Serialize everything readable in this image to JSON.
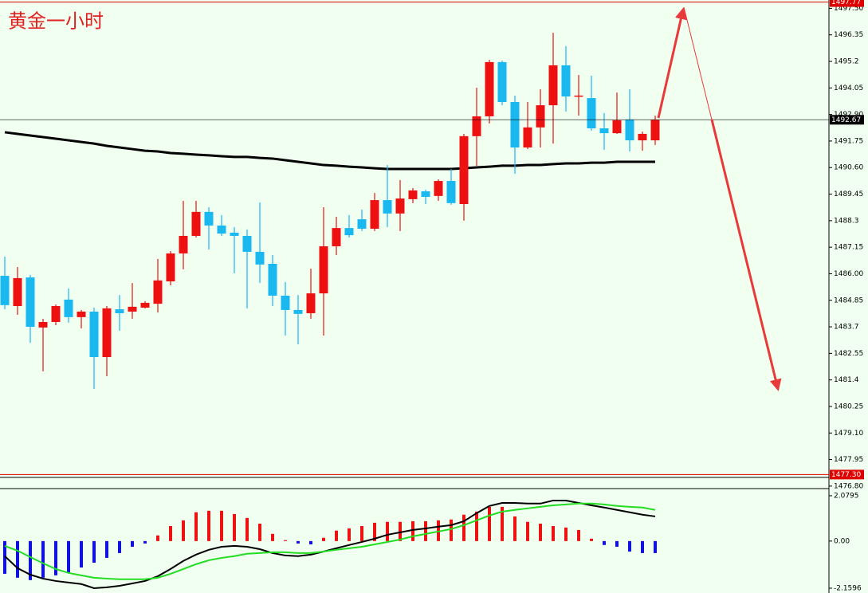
{
  "chart_data": [
    {
      "type": "candlestick",
      "title": "黄金一小时",
      "categories": [
        null,
        null,
        null,
        null,
        null,
        null,
        null,
        null,
        null,
        null,
        null,
        null,
        null,
        null,
        null,
        null,
        null,
        null,
        null,
        null,
        null,
        null,
        null,
        null,
        null,
        null,
        null,
        null,
        null,
        null,
        null,
        null,
        null,
        null,
        null,
        null,
        null,
        null,
        null,
        null,
        null,
        null,
        null,
        null,
        null,
        null,
        null,
        null,
        null,
        null,
        null,
        null
      ],
      "open": [
        1485.91,
        1484.6,
        1485.84,
        1483.67,
        1483.91,
        1484.88,
        1484.12,
        1484.36,
        1482.39,
        1484.46,
        1484.36,
        1484.53,
        1484.7,
        1485.67,
        1486.88,
        1487.64,
        1488.68,
        1488.09,
        1487.78,
        1487.64,
        1486.95,
        1486.43,
        1485.05,
        1484.43,
        1484.29,
        1485.15,
        1487.19,
        1487.98,
        1488.36,
        1487.95,
        1489.19,
        1488.61,
        1489.23,
        1489.57,
        1489.37,
        1490.02,
        1489.02,
        1491.96,
        1492.82,
        1495.17,
        1493.44,
        1491.47,
        1492.34,
        1493.3,
        1495.03,
        1493.68,
        1493.61,
        1492.3,
        1492.09,
        1492.68,
        1491.78,
        1491.78
      ],
      "high": [
        1486.74,
        1486.29,
        1485.95,
        1484.05,
        1484.67,
        1485.36,
        1484.43,
        1484.53,
        1484.6,
        1485.08,
        1485.6,
        1484.81,
        1486.64,
        1486.98,
        1489.16,
        1489.16,
        1488.88,
        1488.54,
        1488.02,
        1487.92,
        1489.09,
        1486.81,
        1485.64,
        1485.08,
        1486.22,
        1488.88,
        1488.47,
        1488.54,
        1488.78,
        1489.5,
        1490.71,
        1490.06,
        1489.71,
        1489.64,
        1490.09,
        1490.54,
        1492.06,
        1494.06,
        1495.27,
        1495.24,
        1493.72,
        1493.44,
        1493.99,
        1496.44,
        1495.86,
        1494.61,
        1494.58,
        1492.96,
        1493.85,
        1493.99,
        1492.16,
        1492.85
      ],
      "low": [
        1484.46,
        1484.22,
        1483.01,
        1481.77,
        1483.77,
        1483.88,
        1483.63,
        1481.01,
        1481.56,
        1483.53,
        1484.05,
        1484.5,
        1484.32,
        1485.5,
        1486.19,
        1487.57,
        1487.05,
        1487.64,
        1486.02,
        1484.5,
        1485.6,
        1484.6,
        1483.32,
        1482.94,
        1484.05,
        1483.32,
        1486.81,
        1487.57,
        1487.85,
        1487.85,
        1488.02,
        1487.85,
        1489.06,
        1489.02,
        1489.16,
        1488.99,
        1488.3,
        1490.68,
        1492.51,
        1493.3,
        1490.33,
        1491.4,
        1491.47,
        1491.64,
        1493.03,
        1492.85,
        1492.2,
        1491.37,
        1492.06,
        1491.3,
        1491.33,
        1491.58
      ],
      "close": [
        1484.64,
        1485.81,
        1483.7,
        1483.91,
        1484.6,
        1484.12,
        1484.36,
        1482.39,
        1484.5,
        1484.29,
        1484.57,
        1484.74,
        1485.71,
        1486.88,
        1487.64,
        1488.68,
        1488.09,
        1487.74,
        1487.64,
        1486.95,
        1486.4,
        1485.05,
        1484.43,
        1484.26,
        1485.15,
        1487.19,
        1487.98,
        1487.67,
        1487.95,
        1489.19,
        1488.61,
        1489.26,
        1489.61,
        1489.33,
        1490.02,
        1489.06,
        1491.96,
        1492.82,
        1495.17,
        1493.44,
        1491.47,
        1492.34,
        1493.3,
        1495.03,
        1493.68,
        1493.72,
        1492.3,
        1492.09,
        1492.65,
        1491.78,
        1492.06,
        1492.67
      ],
      "up_color": "#ee1111",
      "down_color": "#1ab8f0",
      "ma": {
        "color": "#000000",
        "values": [
          1492.13,
          1492.06,
          1491.99,
          1491.92,
          1491.85,
          1491.78,
          1491.71,
          1491.64,
          1491.54,
          1491.47,
          1491.4,
          1491.33,
          1491.3,
          1491.23,
          1491.2,
          1491.16,
          1491.13,
          1491.09,
          1491.06,
          1491.06,
          1491.02,
          1490.99,
          1490.92,
          1490.85,
          1490.78,
          1490.71,
          1490.68,
          1490.64,
          1490.61,
          1490.57,
          1490.54,
          1490.54,
          1490.54,
          1490.54,
          1490.54,
          1490.54,
          1490.57,
          1490.61,
          1490.64,
          1490.68,
          1490.68,
          1490.71,
          1490.71,
          1490.75,
          1490.78,
          1490.78,
          1490.81,
          1490.81,
          1490.85,
          1490.85,
          1490.85,
          1490.85
        ]
      },
      "ylim": [
        1477.21,
        1497.86
      ],
      "yticks": [
        {
          "value": 1497.5,
          "label": "1497.50"
        },
        1496.35,
        1495.2,
        1494.05,
        {
          "value": 1492.9,
          "label": "1492.90"
        },
        1491.75,
        {
          "value": 1490.6,
          "label": "1490.60"
        },
        1489.45,
        1488.3,
        1487.15,
        {
          "value": 1486,
          "label": "1486.00"
        },
        1484.85,
        1483.7,
        1482.55,
        1481.4,
        1480.25,
        {
          "value": 1479.1,
          "label": "1479.10"
        },
        1477.95,
        {
          "value": 1476.8,
          "label": "1476.80"
        }
      ],
      "price_lines": [
        {
          "value": 1497.77,
          "color": "#e00000"
        },
        {
          "value": 1492.67,
          "color": "#000000"
        },
        {
          "value": 1477.3,
          "label": "1477.30",
          "color": "#e00000"
        }
      ]
    },
    {
      "type": "macd",
      "histogram": {
        "up_color": "#ee1111",
        "down_color": "#1010e0",
        "values": [
          -1.5,
          -1.68,
          -1.79,
          -1.68,
          -1.57,
          -1.43,
          -1.21,
          -0.99,
          -0.77,
          -0.55,
          -0.26,
          -0.11,
          0.26,
          0.69,
          0.95,
          1.32,
          1.39,
          1.39,
          1.24,
          1.06,
          0.8,
          0.33,
          0.04,
          -0.11,
          -0.15,
          0.15,
          0.48,
          0.58,
          0.69,
          0.84,
          0.88,
          0.88,
          0.91,
          0.91,
          0.95,
          0.99,
          1.21,
          1.35,
          1.57,
          1.57,
          1.13,
          0.88,
          0.8,
          0.69,
          0.62,
          0.51,
          0.11,
          -0.18,
          -0.26,
          -0.48,
          -0.55,
          -0.55
        ]
      },
      "series": [
        {
          "color": "#000000",
          "values": [
            -0.69,
            -1.24,
            -1.54,
            -1.72,
            -1.83,
            -1.9,
            -1.97,
            -2.16,
            -2.12,
            -2.05,
            -1.94,
            -1.83,
            -1.61,
            -1.28,
            -0.91,
            -0.62,
            -0.4,
            -0.26,
            -0.22,
            -0.26,
            -0.37,
            -0.55,
            -0.66,
            -0.69,
            -0.62,
            -0.48,
            -0.33,
            -0.18,
            -0.04,
            0.11,
            0.29,
            0.4,
            0.51,
            0.58,
            0.66,
            0.73,
            0.91,
            1.28,
            1.61,
            1.75,
            1.75,
            1.72,
            1.72,
            1.86,
            1.86,
            1.75,
            1.64,
            1.54,
            1.43,
            1.32,
            1.21,
            1.13
          ]
        },
        {
          "color": "#22dd22",
          "values": [
            -0.22,
            -0.44,
            -0.73,
            -1.02,
            -1.28,
            -1.46,
            -1.57,
            -1.68,
            -1.72,
            -1.75,
            -1.75,
            -1.75,
            -1.68,
            -1.5,
            -1.28,
            -1.06,
            -0.88,
            -0.77,
            -0.69,
            -0.58,
            -0.55,
            -0.51,
            -0.51,
            -0.55,
            -0.55,
            -0.48,
            -0.4,
            -0.33,
            -0.26,
            -0.15,
            -0.04,
            0.07,
            0.22,
            0.33,
            0.44,
            0.55,
            0.73,
            0.95,
            1.17,
            1.35,
            1.43,
            1.5,
            1.57,
            1.64,
            1.68,
            1.72,
            1.72,
            1.68,
            1.61,
            1.57,
            1.54,
            1.43
          ]
        }
      ],
      "ylim": [
        -2.38,
        2.37
      ],
      "yticks": [
        2.0795,
        {
          "value": 0,
          "label": "0.00"
        },
        -2.1596
      ]
    }
  ]
}
